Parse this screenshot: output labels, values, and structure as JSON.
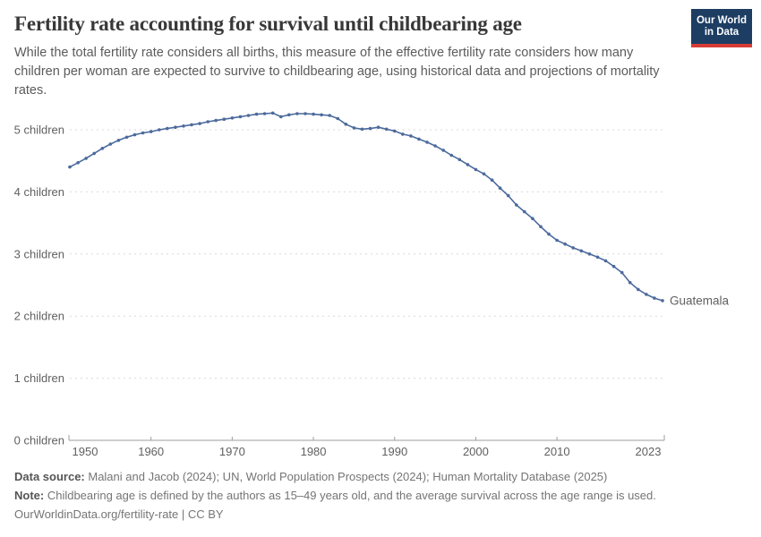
{
  "header": {
    "title": "Fertility rate accounting for survival until childbearing age",
    "subtitle": "While the total fertility rate considers all births, this measure of the effective fertility rate considers how many children per woman are expected to survive to childbearing age, using historical data and projections of mortality rates.",
    "logo": {
      "line1": "Our World",
      "line2": "in Data",
      "bg_color": "#1d3d63",
      "accent_color": "#d73c34"
    }
  },
  "chart_data": {
    "type": "line",
    "title": "Fertility rate accounting for survival until childbearing age",
    "xlabel": "",
    "ylabel": "",
    "xlim": [
      1950,
      2023
    ],
    "ylim": [
      0,
      5.45
    ],
    "grid": "horizontal-dashed",
    "legend_position": "end-of-line-label",
    "x_ticks": [
      1950,
      1960,
      1970,
      1980,
      1990,
      2000,
      2010,
      2023
    ],
    "y_ticks": [
      {
        "value": 0,
        "label": "0 children"
      },
      {
        "value": 1,
        "label": "1 children"
      },
      {
        "value": 2,
        "label": "2 children"
      },
      {
        "value": 3,
        "label": "3 children"
      },
      {
        "value": 4,
        "label": "4 children"
      },
      {
        "value": 5,
        "label": "5 children"
      }
    ],
    "series": [
      {
        "name": "Guatemala",
        "color": "#4C6A9C",
        "x_start": 1950,
        "x_step": 1,
        "values": [
          4.4,
          4.47,
          4.54,
          4.62,
          4.7,
          4.77,
          4.83,
          4.88,
          4.92,
          4.95,
          4.97,
          5.0,
          5.02,
          5.04,
          5.06,
          5.08,
          5.1,
          5.13,
          5.15,
          5.17,
          5.19,
          5.21,
          5.23,
          5.25,
          5.26,
          5.27,
          5.21,
          5.24,
          5.26,
          5.26,
          5.25,
          5.24,
          5.23,
          5.18,
          5.09,
          5.03,
          5.01,
          5.02,
          5.04,
          5.01,
          4.98,
          4.93,
          4.9,
          4.85,
          4.8,
          4.74,
          4.67,
          4.59,
          4.52,
          4.44,
          4.36,
          4.29,
          4.19,
          4.06,
          3.94,
          3.79,
          3.68,
          3.57,
          3.44,
          3.32,
          3.22,
          3.16,
          3.1,
          3.05,
          3.0,
          2.95,
          2.89,
          2.8,
          2.7,
          2.54,
          2.43,
          2.35,
          2.29,
          2.25
        ]
      }
    ],
    "colors": {
      "gridline": "#d9d9d9",
      "axis": "#9e9e9e",
      "tick_label": "#606060"
    }
  },
  "footer": {
    "data_source_label": "Data source:",
    "data_source_text": " Malani and Jacob (2024); UN, World Population Prospects (2024); Human Mortality Database (2025)",
    "note_label": "Note:",
    "note_text": " Childbearing age is defined by the authors as 15–49 years old, and the average survival across the age range is used.",
    "url_line": "OurWorldinData.org/fertility-rate | CC BY"
  }
}
